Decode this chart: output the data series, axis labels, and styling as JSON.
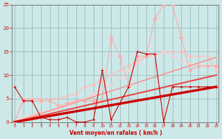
{
  "x": [
    0,
    1,
    2,
    3,
    4,
    5,
    6,
    7,
    8,
    9,
    10,
    11,
    12,
    13,
    14,
    15,
    16,
    17,
    18,
    19,
    20,
    21,
    22,
    23
  ],
  "series": [
    {
      "name": "dark_red_jagged_markers",
      "color": "#cc0000",
      "linewidth": 0.8,
      "marker": "+",
      "markersize": 3.5,
      "zorder": 5,
      "values": [
        7.5,
        4.5,
        4.5,
        1.0,
        0.5,
        0.5,
        1.0,
        0.0,
        0.0,
        0.5,
        11.0,
        0.5,
        4.0,
        7.5,
        15.0,
        14.5,
        14.5,
        0.0,
        7.5,
        7.5,
        7.5,
        7.5,
        7.5,
        7.5
      ]
    },
    {
      "name": "light_pink_peak25",
      "color": "#ffaaaa",
      "linewidth": 0.8,
      "marker": "D",
      "markersize": 2.5,
      "zorder": 3,
      "values": [
        0.0,
        4.5,
        4.5,
        4.5,
        4.5,
        3.5,
        4.0,
        4.5,
        4.5,
        4.5,
        4.5,
        18.0,
        14.0,
        8.0,
        14.0,
        14.0,
        22.0,
        25.0,
        25.0,
        18.0,
        11.0,
        12.0,
        12.0,
        12.0
      ]
    },
    {
      "name": "light_pink_smooth",
      "color": "#ffbbbb",
      "linewidth": 0.8,
      "marker": "D",
      "markersize": 2.0,
      "zorder": 2,
      "values": [
        0.0,
        5.0,
        5.0,
        5.0,
        5.0,
        5.0,
        5.5,
        6.0,
        7.5,
        8.0,
        9.0,
        10.0,
        11.0,
        12.0,
        13.0,
        14.0,
        14.5,
        15.0,
        15.0,
        15.0,
        14.0,
        14.0,
        14.0,
        11.0
      ]
    },
    {
      "name": "lightest_pink_linear",
      "color": "#ffcccc",
      "linewidth": 0.8,
      "marker": "D",
      "markersize": 2.0,
      "zorder": 2,
      "values": [
        0.0,
        1.0,
        1.5,
        2.0,
        2.5,
        3.0,
        3.5,
        4.5,
        5.0,
        6.0,
        7.0,
        8.0,
        9.5,
        11.0,
        12.5,
        14.0,
        14.0,
        15.0,
        14.0,
        13.0,
        12.5,
        12.0,
        12.0,
        11.5
      ]
    },
    {
      "name": "dark_red_linear_thick",
      "color": "#cc0000",
      "linewidth": 2.5,
      "marker": null,
      "markersize": 0,
      "zorder": 4,
      "values": [
        0.0,
        0.33,
        0.65,
        1.0,
        1.3,
        1.63,
        1.96,
        2.28,
        2.61,
        2.93,
        3.26,
        3.59,
        3.91,
        4.24,
        4.57,
        4.89,
        5.22,
        5.54,
        5.87,
        6.2,
        6.52,
        6.85,
        7.17,
        7.5
      ]
    },
    {
      "name": "medium_red_linear",
      "color": "#ee4444",
      "linewidth": 1.5,
      "marker": null,
      "markersize": 0,
      "zorder": 3,
      "values": [
        0.0,
        0.43,
        0.87,
        1.3,
        1.74,
        2.17,
        2.61,
        3.04,
        3.48,
        3.91,
        4.35,
        4.78,
        5.22,
        5.65,
        6.09,
        6.52,
        6.96,
        7.39,
        7.83,
        8.26,
        8.7,
        9.13,
        9.57,
        10.0
      ]
    },
    {
      "name": "light_red_linear",
      "color": "#ff8888",
      "linewidth": 1.0,
      "marker": null,
      "markersize": 0,
      "zorder": 2,
      "values": [
        0.0,
        0.6,
        1.2,
        1.8,
        2.4,
        3.0,
        3.6,
        4.2,
        4.8,
        5.4,
        6.0,
        6.6,
        7.2,
        7.8,
        8.4,
        9.0,
        9.6,
        10.2,
        10.8,
        11.4,
        12.0,
        12.6,
        13.2,
        13.8
      ]
    }
  ],
  "xlabel": "Vent moyen/en rafales ( km/h )",
  "xlim": [
    -0.3,
    23.3
  ],
  "ylim": [
    0,
    25
  ],
  "xticks": [
    0,
    1,
    2,
    3,
    4,
    5,
    6,
    7,
    8,
    9,
    10,
    11,
    12,
    13,
    14,
    15,
    16,
    17,
    18,
    19,
    20,
    21,
    22,
    23
  ],
  "yticks": [
    0,
    5,
    10,
    15,
    20,
    25
  ],
  "bg_color": "#cce8e8",
  "grid_color": "#99bbbb",
  "tick_color": "#cc0000",
  "label_color": "#cc0000"
}
